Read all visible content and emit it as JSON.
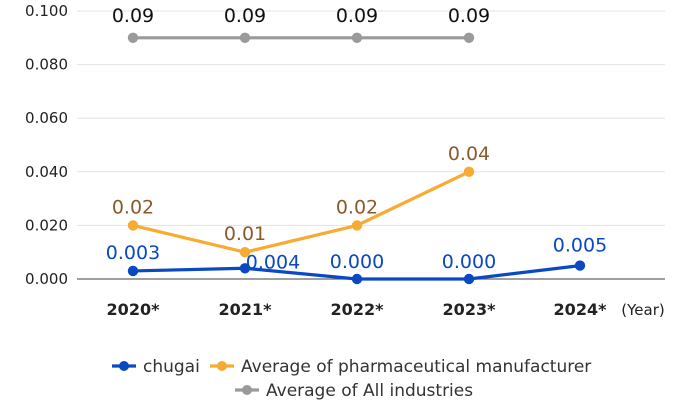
{
  "chart_data": {
    "type": "line",
    "categories": [
      "2020*",
      "2021*",
      "2022*",
      "2023*",
      "2024*"
    ],
    "x_unit_label": "(Year)",
    "ylim": [
      0,
      0.1
    ],
    "y_ticks": [
      "0.000",
      "0.020",
      "0.040",
      "0.060",
      "0.080",
      "0.100"
    ],
    "grid": true,
    "legend_position": "bottom",
    "series": [
      {
        "name": "chugai",
        "color": "#0a49c2",
        "values": [
          0.003,
          0.004,
          0.0,
          0.0,
          0.005
        ],
        "labels": [
          "0.003",
          "0.004",
          "0.000",
          "0.000",
          "0.005"
        ]
      },
      {
        "name": "Average of pharmaceutical manufacturer",
        "color": "#f7ab33",
        "label_color": "#8a5a2b",
        "values": [
          0.02,
          0.01,
          0.02,
          0.04,
          null
        ],
        "labels": [
          "0.02",
          "0.01",
          "0.02",
          "0.04",
          null
        ]
      },
      {
        "name": "Average of All industries",
        "color": "#9a9a9a",
        "label_color": "#111111",
        "values": [
          0.09,
          0.09,
          0.09,
          0.09,
          null
        ],
        "labels": [
          "0.09",
          "0.09",
          "0.09",
          "0.09",
          null
        ]
      }
    ]
  }
}
